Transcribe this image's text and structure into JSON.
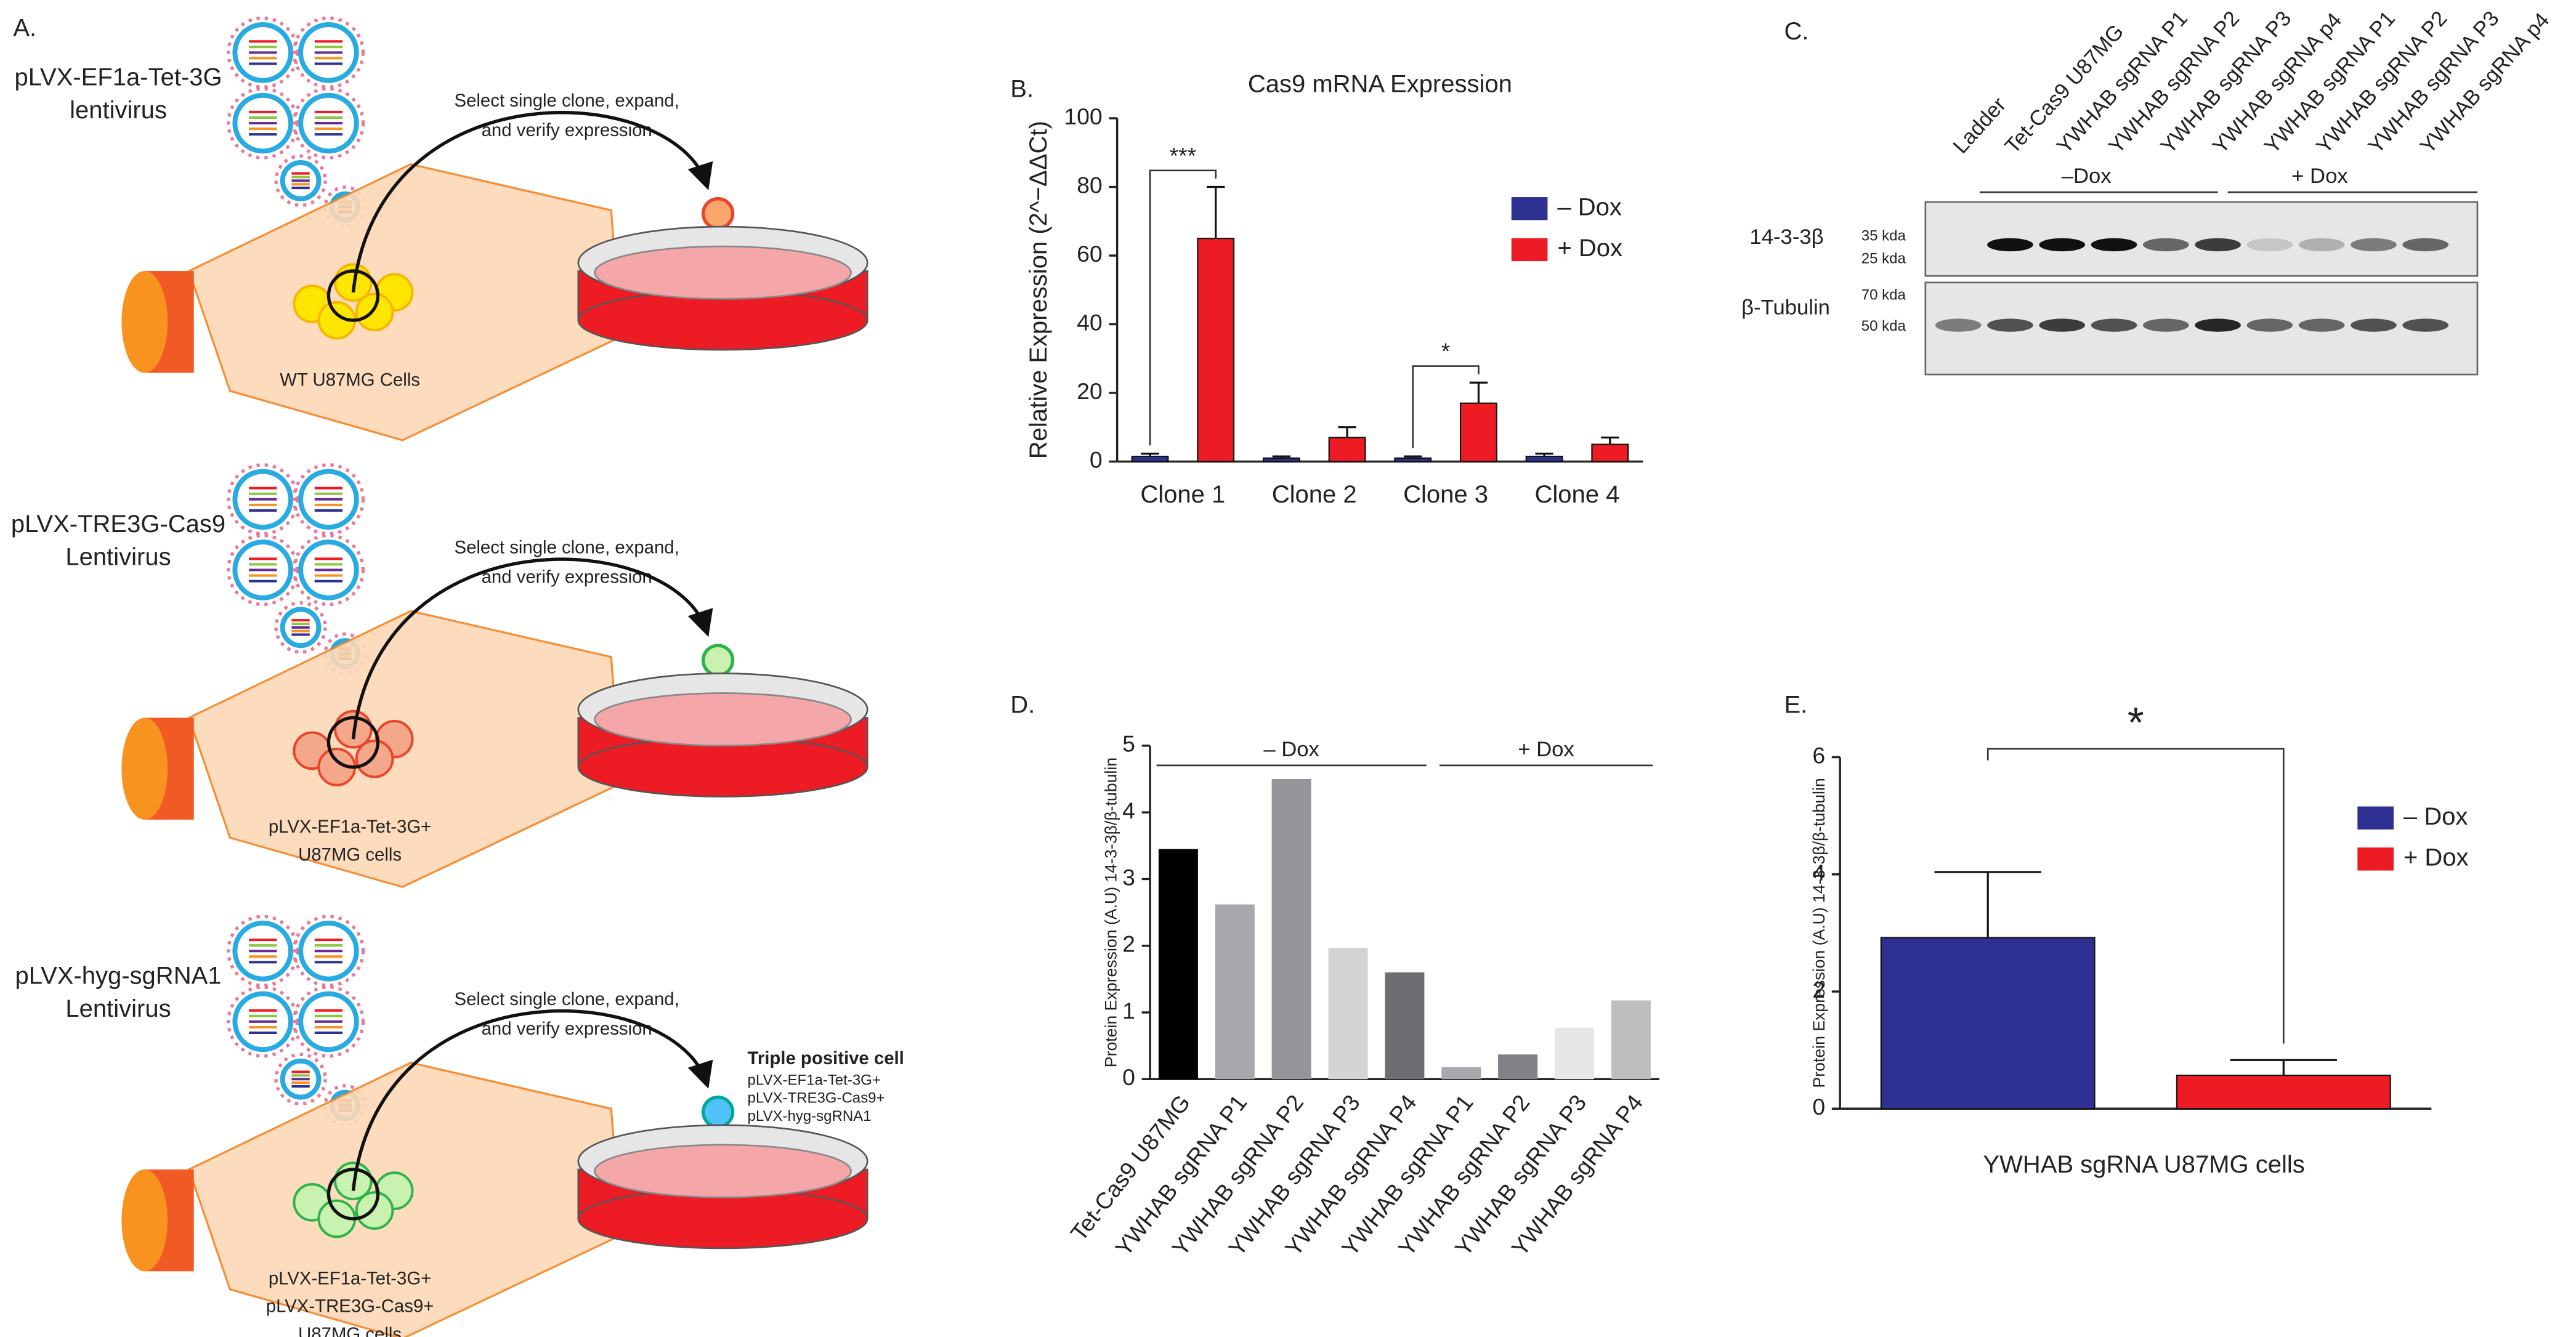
{
  "panel_a": {
    "label": "A.",
    "steps": [
      {
        "vector": [
          "pLVX-EF1a-Tet-3G",
          "lentivirus"
        ],
        "action": [
          "Select single clone, expand,",
          "and verify expression"
        ],
        "cells": [
          "WT U87MG Cells"
        ]
      },
      {
        "vector": [
          "pLVX-TRE3G-Cas9",
          "Lentivirus"
        ],
        "action": [
          "Select single clone, expand,",
          "and verify expression"
        ],
        "cells": [
          "pLVX-EF1a-Tet-3G+",
          "U87MG cells"
        ]
      },
      {
        "vector": [
          "pLVX-hyg-sgRNA1",
          "Lentivirus"
        ],
        "action": [
          "Select single clone, expand,",
          "and verify expression"
        ],
        "cells": [
          "pLVX-EF1a-Tet-3G+",
          "pLVX-TRE3G-Cas9+",
          "U87MG cells"
        ],
        "result": {
          "title": "Triple positive cell",
          "lines": [
            "pLVX-EF1a-Tet-3G+",
            "pLVX-TRE3G-Cas9+",
            "pLVX-hyg-sgRNA1"
          ]
        }
      }
    ]
  },
  "panel_c": {
    "label": "C.",
    "lanes": [
      "Ladder",
      "Tet-Cas9 U87MG",
      "YWHAB sgRNA P1",
      "YWHAB sgRNA P2",
      "YWHAB sgRNA P3",
      "YWHAB sgRNA p4",
      "YWHAB sgRNA P1",
      "YWHAB sgRNA P2",
      "YWHAB sgRNA P3",
      "YWHAB sgRNA p4"
    ],
    "groups": [
      "–Dox",
      "+ Dox"
    ],
    "rows": [
      {
        "name": "14-3-3β",
        "markers": [
          "35 kda",
          "25 kda"
        ]
      },
      {
        "name": "β-Tubulin",
        "markers": [
          "70 kda",
          "50 kda"
        ]
      }
    ]
  },
  "chart_data": [
    {
      "type": "bar",
      "label": "B.",
      "title": "Cas9 mRNA Expression",
      "y_label": "Relative Expression (2^−ΔΔCt)",
      "categories": [
        "Clone 1",
        "Clone 2",
        "Clone 3",
        "Clone 4"
      ],
      "series": [
        {
          "name": "– Dox",
          "color": "#2e3192",
          "values": [
            1.5,
            1,
            1,
            1.5
          ],
          "errors": [
            0.8,
            0.5,
            0.5,
            0.8
          ]
        },
        {
          "name": "+ Dox",
          "color": "#ed1c24",
          "values": [
            65,
            7,
            17,
            5
          ],
          "errors": [
            15,
            3,
            6,
            2
          ]
        }
      ],
      "significance": [
        "***",
        null,
        "*",
        null
      ],
      "ylim": [
        0,
        100
      ],
      "yticks": [
        0,
        20,
        40,
        60,
        80,
        100
      ],
      "legend": "right"
    },
    {
      "type": "bar",
      "label": "D.",
      "y_label": "Protein Expression (A.U) 14-3-3β/β-tubulin",
      "categories": [
        "Tet-Cas9 U87MG",
        "YWHAB sgRNA P1",
        "YWHAB sgRNA P2",
        "YWHAB sgRNA P3",
        "YWHAB sgRNA P4",
        "YWHAB sgRNA P1",
        "YWHAB sgRNA P2",
        "YWHAB sgRNA P3",
        "YWHAB sgRNA P4"
      ],
      "values": [
        3.45,
        2.62,
        4.5,
        1.97,
        1.6,
        0.18,
        0.37,
        0.77,
        1.18
      ],
      "colors": [
        "#000000",
        "#a7a9ac",
        "#939598",
        "#d1d3d4",
        "#6d6e71",
        "#a7a9ac",
        "#808285",
        "#e6e7e8",
        "#bcbec0"
      ],
      "groups": [
        "– Dox",
        "+ Dox"
      ],
      "ylim": [
        0,
        5
      ],
      "yticks": [
        0,
        1,
        2,
        3,
        4,
        5
      ]
    },
    {
      "type": "bar",
      "label": "E.",
      "y_label": "Protein Expression (A.U) 14-3-3β/β-tubulin",
      "x_label": "YWHAB sgRNA U87MG cells",
      "series": [
        {
          "name": "– Dox",
          "color": "#2e3192",
          "values": [
            2.92
          ],
          "errors": [
            1.12
          ]
        },
        {
          "name": "+ Dox",
          "color": "#ed1c24",
          "values": [
            0.57
          ],
          "errors": [
            0.26
          ]
        }
      ],
      "significance": "*",
      "ylim": [
        0,
        6
      ],
      "yticks": [
        0,
        2,
        4,
        6
      ],
      "legend": "right"
    }
  ]
}
